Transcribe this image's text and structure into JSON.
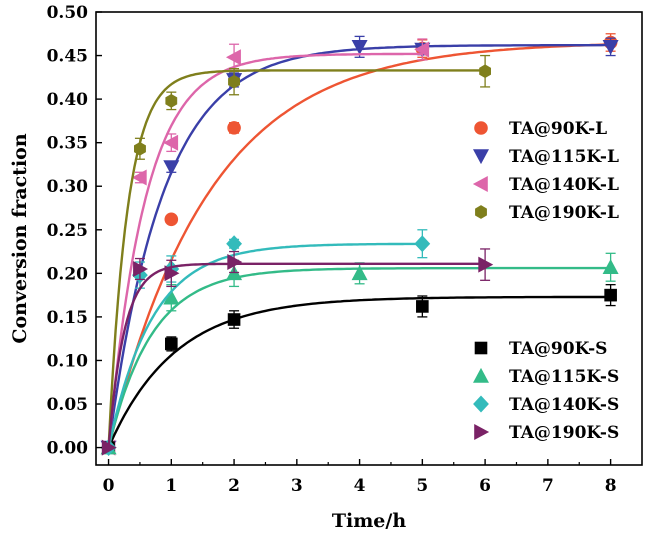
{
  "chart_data": {
    "type": "scatter",
    "xlabel": "Time/h",
    "ylabel": "Conversion fraction",
    "xlim": [
      -0.2,
      8.5
    ],
    "ylim": [
      -0.02,
      0.5
    ],
    "xticks": [
      0,
      1,
      2,
      3,
      4,
      5,
      6,
      7,
      8
    ],
    "xtick_labels": [
      "0",
      "1",
      "2",
      "3",
      "4",
      "5",
      "6",
      "7",
      "8"
    ],
    "yticks": [
      0.0,
      0.05,
      0.1,
      0.15,
      0.2,
      0.25,
      0.3,
      0.35,
      0.4,
      0.45,
      0.5
    ],
    "ytick_labels": [
      "0.00",
      "0.05",
      "0.10",
      "0.15",
      "0.20",
      "0.25",
      "0.30",
      "0.35",
      "0.40",
      "0.45",
      "0.50"
    ],
    "grid": false,
    "legend_groups": [
      {
        "placement": "center-right",
        "series": [
          "TA@90K-L",
          "TA@115K-L",
          "TA@140K-L",
          "TA@190K-L"
        ]
      },
      {
        "placement": "bottom-right",
        "series": [
          "TA@90K-S",
          "TA@115K-S",
          "TA@140K-S",
          "TA@190K-S"
        ]
      }
    ],
    "series": [
      {
        "name": "TA@90K-L",
        "marker": "circle",
        "color": "#ee5533",
        "x": [
          0,
          1,
          2,
          5,
          8
        ],
        "y": [
          0.0,
          0.262,
          0.367,
          0.458,
          0.465
        ],
        "err": [
          0,
          0.004,
          0.006,
          0.01,
          0.01
        ],
        "fit": {
          "plateau": 0.466,
          "k": 0.62
        }
      },
      {
        "name": "TA@115K-L",
        "marker": "triangle-down",
        "color": "#3a3fa8",
        "x": [
          0,
          1,
          2,
          4,
          5,
          8
        ],
        "y": [
          0.0,
          0.322,
          0.422,
          0.46,
          0.457,
          0.46
        ],
        "err": [
          0,
          0.006,
          0.008,
          0.012,
          0.006,
          0.01
        ],
        "fit": {
          "plateau": 0.462,
          "k": 1.15
        }
      },
      {
        "name": "TA@140K-L",
        "marker": "triangle-left",
        "color": "#dd66aa",
        "x": [
          0,
          0.5,
          1,
          2,
          5
        ],
        "y": [
          0.0,
          0.31,
          0.35,
          0.448,
          0.457
        ],
        "err": [
          0,
          0.006,
          0.01,
          0.015,
          0.012
        ],
        "fit": {
          "plateau": 0.452,
          "k": 1.7
        }
      },
      {
        "name": "TA@190K-L",
        "marker": "hexagon",
        "color": "#7f7f1c",
        "x": [
          0,
          0.5,
          1,
          2,
          6
        ],
        "y": [
          0.0,
          0.343,
          0.398,
          0.42,
          0.432
        ],
        "err": [
          0,
          0.012,
          0.01,
          0.015,
          0.018
        ],
        "fit": {
          "plateau": 0.433,
          "k": 3.3
        }
      },
      {
        "name": "TA@90K-S",
        "marker": "square",
        "color": "#000000",
        "x": [
          0,
          1,
          2,
          5,
          8
        ],
        "y": [
          0.0,
          0.119,
          0.147,
          0.162,
          0.175
        ],
        "err": [
          0,
          0.008,
          0.01,
          0.012,
          0.012
        ],
        "fit": {
          "plateau": 0.173,
          "k": 0.95
        }
      },
      {
        "name": "TA@115K-S",
        "marker": "triangle-up",
        "color": "#33bb88",
        "x": [
          0,
          1,
          2,
          4,
          8
        ],
        "y": [
          0.0,
          0.172,
          0.2,
          0.2,
          0.207
        ],
        "err": [
          0,
          0.015,
          0.015,
          0.012,
          0.016
        ],
        "fit": {
          "plateau": 0.206,
          "k": 1.45
        }
      },
      {
        "name": "TA@140K-S",
        "marker": "diamond",
        "color": "#33bbbb",
        "x": [
          0,
          0.5,
          1,
          2,
          5
        ],
        "y": [
          0.0,
          0.198,
          0.205,
          0.234,
          0.234
        ],
        "err": [
          0,
          0.015,
          0.015,
          0.005,
          0.016
        ],
        "fit": {
          "plateau": 0.234,
          "k": 1.45
        }
      },
      {
        "name": "TA@190K-S",
        "marker": "triangle-right",
        "color": "#7a2266",
        "x": [
          0,
          0.5,
          1,
          2,
          6
        ],
        "y": [
          0.0,
          0.205,
          0.2,
          0.213,
          0.21
        ],
        "err": [
          0,
          0.012,
          0.015,
          0.012,
          0.018
        ],
        "fit": {
          "plateau": 0.211,
          "k": 4.0
        }
      }
    ]
  }
}
